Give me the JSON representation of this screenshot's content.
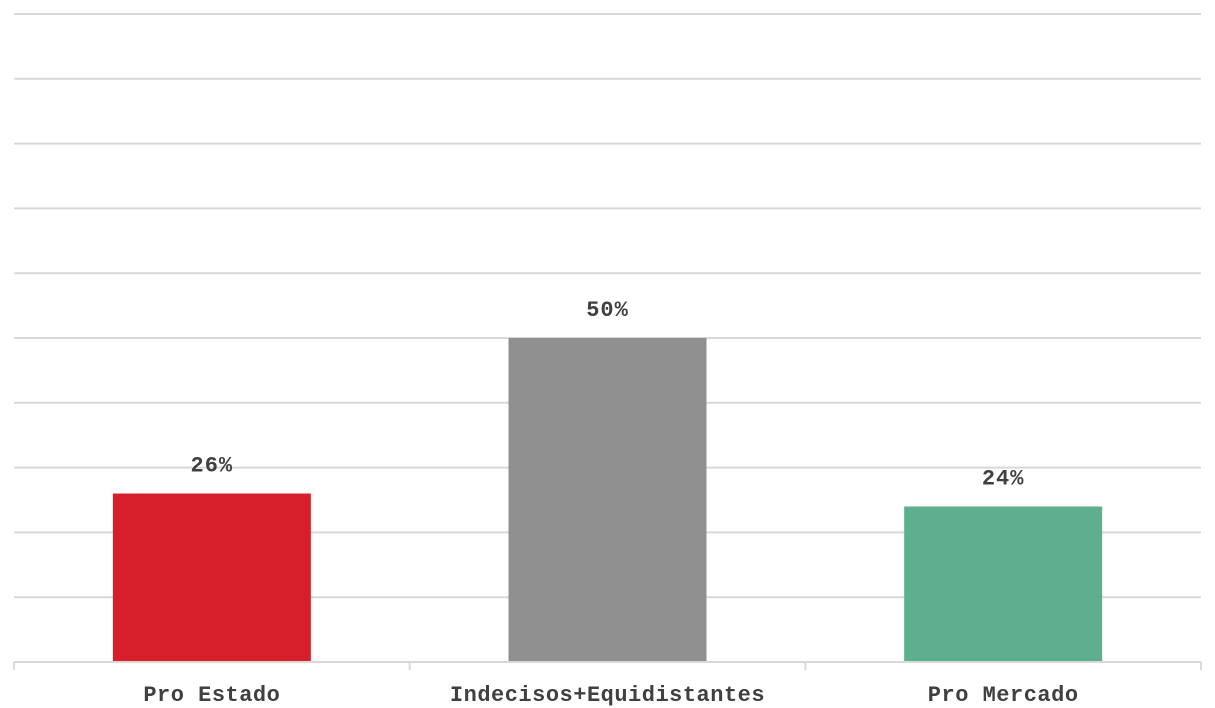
{
  "chart_data": {
    "type": "bar",
    "categories": [
      "Pro Estado",
      "Indecisos+Equidistantes",
      "Pro Mercado"
    ],
    "values": [
      26,
      50,
      24
    ],
    "value_labels": [
      "26%",
      "50%",
      "24%"
    ],
    "colors": [
      "#d61f2b",
      "#909090",
      "#5eaf8e"
    ],
    "ylim": [
      0,
      100
    ],
    "grid": true,
    "title": "",
    "xlabel": "",
    "ylabel": ""
  }
}
